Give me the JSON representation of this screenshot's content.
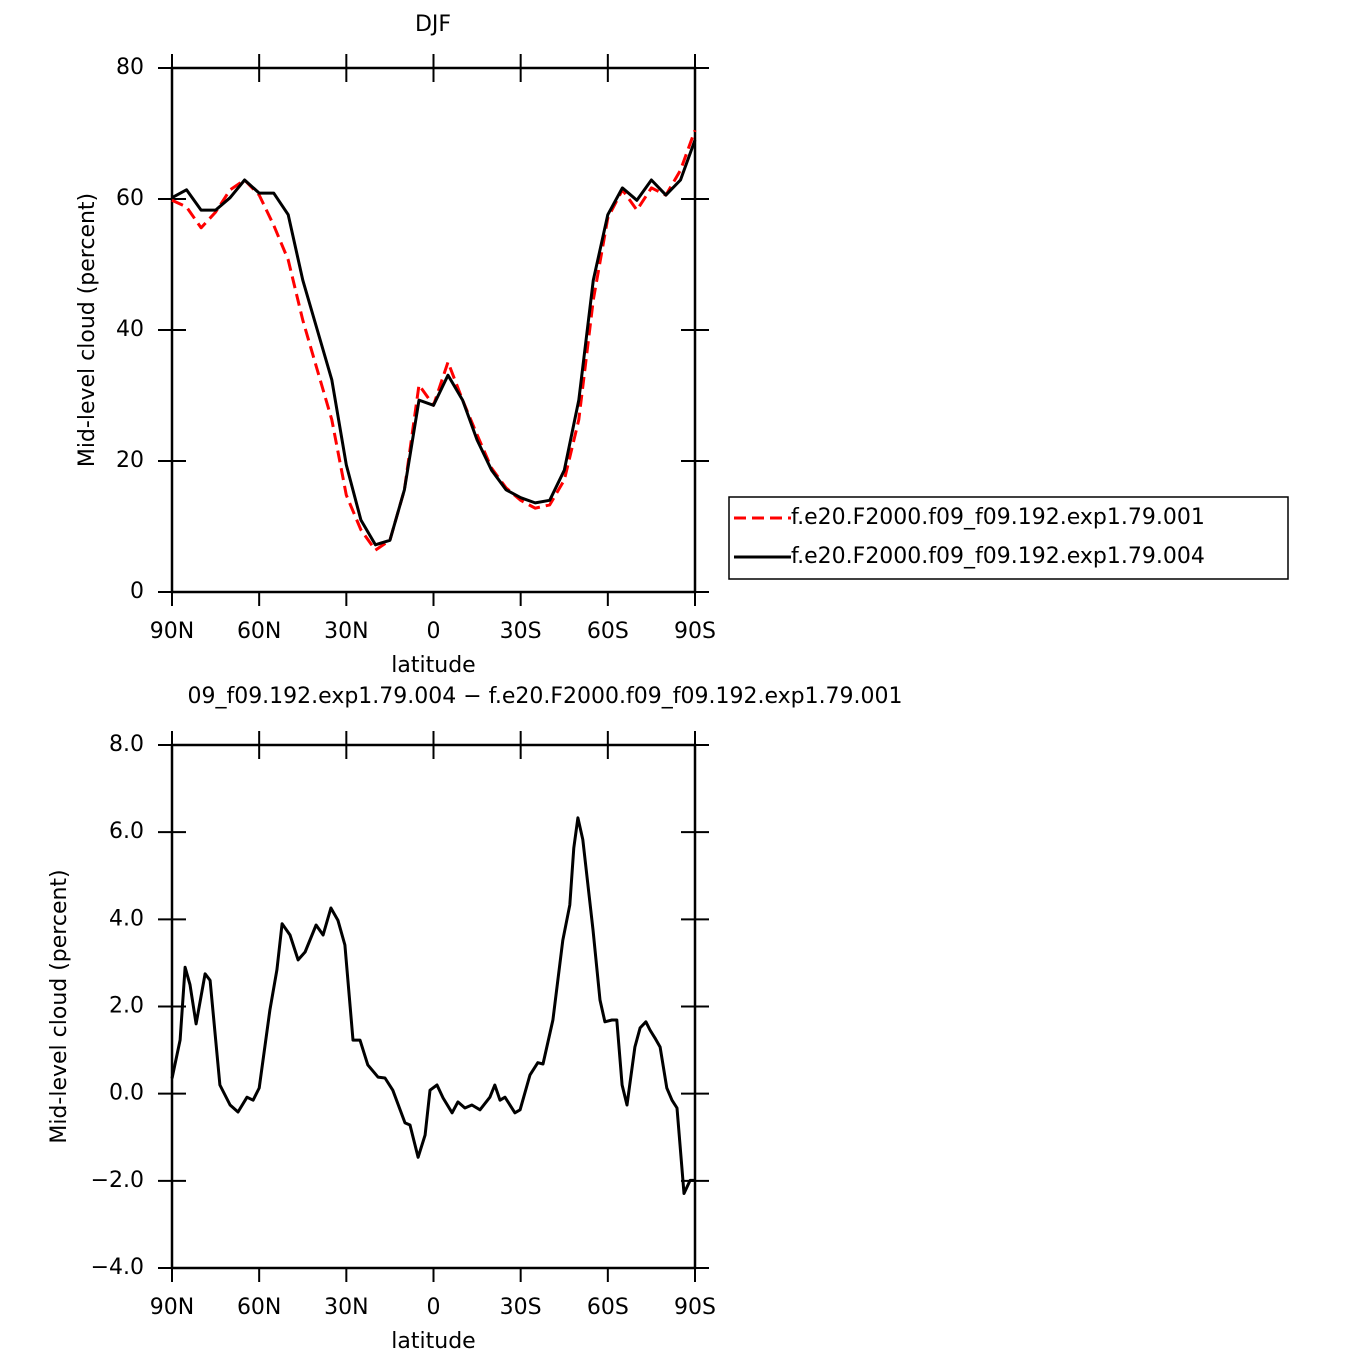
{
  "chart_data": [
    {
      "type": "line",
      "title": "DJF",
      "xlabel": "latitude",
      "ylabel": "Mid-level cloud (percent)",
      "x": [
        90,
        85,
        80,
        75,
        70,
        65,
        60,
        55,
        50,
        45,
        40,
        35,
        30,
        25,
        20,
        15,
        10,
        5,
        0,
        -5,
        -10,
        -15,
        -20,
        -25,
        -30,
        -35,
        -40,
        -45,
        -50,
        -55,
        -60,
        -65,
        -70,
        -75,
        -80,
        -85,
        -90
      ],
      "series": [
        {
          "name": "f.e20.F2000.f09_f09.192.exp1.79.001",
          "color": "#ff0000",
          "line_style": "dashed",
          "values": [
            59.8,
            58.8,
            55.6,
            58,
            61.4,
            62.9,
            60.6,
            56,
            50.7,
            41.5,
            33.9,
            26.3,
            14.8,
            9.5,
            6.4,
            7.9,
            15.6,
            31.6,
            28.5,
            35.1,
            29.3,
            24,
            18.9,
            15.9,
            14,
            12.8,
            13.3,
            17.1,
            26.3,
            44.6,
            57.1,
            61.4,
            58.3,
            61.7,
            60.6,
            64.4,
            70.5
          ]
        },
        {
          "name": "f.e20.F2000.f09_f09.192.exp1.79.004",
          "color": "#000000",
          "line_style": "solid",
          "values": [
            60.2,
            61.4,
            58.3,
            58.3,
            60.2,
            62.9,
            60.9,
            60.9,
            57.6,
            47.6,
            40,
            32.4,
            19.4,
            11,
            7.2,
            7.9,
            15.6,
            29.3,
            28.5,
            33.1,
            29.3,
            23.2,
            18.6,
            15.6,
            14.4,
            13.6,
            14,
            18.6,
            29.3,
            47.6,
            57.6,
            61.7,
            59.8,
            62.9,
            60.6,
            62.9,
            69
          ]
        }
      ],
      "xlim": [
        90,
        -90
      ],
      "xticks": [
        {
          "value": 90,
          "label": "90N"
        },
        {
          "value": 60,
          "label": "60N"
        },
        {
          "value": 30,
          "label": "30N"
        },
        0,
        {
          "value": -30,
          "label": "30S"
        },
        {
          "value": -60,
          "label": "60S"
        },
        {
          "value": -90,
          "label": "90S"
        }
      ],
      "ylim": [
        0,
        80
      ],
      "yticks": [
        0,
        20,
        40,
        60,
        80
      ],
      "legend": "right"
    },
    {
      "type": "line",
      "title": "09_f09.192.exp1.79.004 − f.e20.F2000.f09_f09.192.exp1.79.001",
      "xlabel": "latitude",
      "ylabel": "Mid-level cloud (percent)",
      "x": [
        90,
        87.2,
        85.5,
        83.8,
        81.7,
        78.6,
        76.9,
        73.5,
        70,
        67.3,
        64.2,
        62.1,
        60,
        56.3,
        53.9,
        52.1,
        49.4,
        46.6,
        44.2,
        40.4,
        38,
        35.3,
        32.9,
        30.5,
        27.7,
        25.3,
        22.6,
        19.1,
        16.7,
        14,
        9.8,
        8.1,
        5.3,
        2.9,
        1.2,
        -1.2,
        -3.3,
        -6.4,
        -8.4,
        -10.8,
        -13.2,
        -16,
        -19.4,
        -21.1,
        -22.9,
        -24.6,
        -28,
        -29.8,
        -33.2,
        -35.9,
        -37.7,
        -41.1,
        -44.5,
        -46.9,
        -48.3,
        -49.7,
        -51.4,
        -54.9,
        -57.3,
        -59,
        -61.4,
        -63.1,
        -64.9,
        -66.6,
        -69.3,
        -71.1,
        -73.1,
        -74.5,
        -76.2,
        -78,
        -80.3,
        -82.1,
        -83.8,
        -86.2,
        -88.3,
        -90
      ],
      "values": [
        0.35,
        1.23,
        2.9,
        2.5,
        1.6,
        2.75,
        2.6,
        0.2,
        -0.26,
        -0.42,
        -0.08,
        -0.15,
        0.13,
        1.92,
        2.84,
        3.9,
        3.64,
        3.07,
        3.25,
        3.87,
        3.64,
        4.26,
        3.98,
        3.41,
        1.23,
        1.23,
        0.66,
        0.38,
        0.36,
        0.08,
        -0.67,
        -0.72,
        -1.46,
        -0.95,
        0.08,
        0.2,
        -0.1,
        -0.44,
        -0.19,
        -0.33,
        -0.26,
        -0.37,
        -0.08,
        0.2,
        -0.15,
        -0.08,
        -0.44,
        -0.37,
        0.43,
        0.71,
        0.68,
        1.69,
        3.52,
        4.33,
        5.64,
        6.33,
        5.83,
        3.76,
        2.15,
        1.65,
        1.69,
        1.69,
        0.2,
        -0.26,
        1.07,
        1.51,
        1.65,
        1.46,
        1.28,
        1.07,
        0.13,
        -0.15,
        -0.33,
        -2.29,
        -1.99,
        -1.99
      ],
      "color": "#000000",
      "xlim": [
        90,
        -90
      ],
      "xticks": [
        {
          "value": 90,
          "label": "90N"
        },
        {
          "value": 60,
          "label": "60N"
        },
        {
          "value": 30,
          "label": "30N"
        },
        0,
        {
          "value": -30,
          "label": "30S"
        },
        {
          "value": -60,
          "label": "60S"
        },
        {
          "value": -90,
          "label": "90S"
        }
      ],
      "ylim": [
        -4,
        8
      ],
      "yticks": [
        {
          "value": -4,
          "label": "−4.0"
        },
        {
          "value": -2,
          "label": "−2.0"
        },
        {
          "value": 0,
          "label": "0.0"
        },
        {
          "value": 2,
          "label": "2.0"
        },
        {
          "value": 4,
          "label": "4.0"
        },
        {
          "value": 6,
          "label": "6.0"
        },
        {
          "value": 8,
          "label": "8.0"
        }
      ]
    }
  ]
}
